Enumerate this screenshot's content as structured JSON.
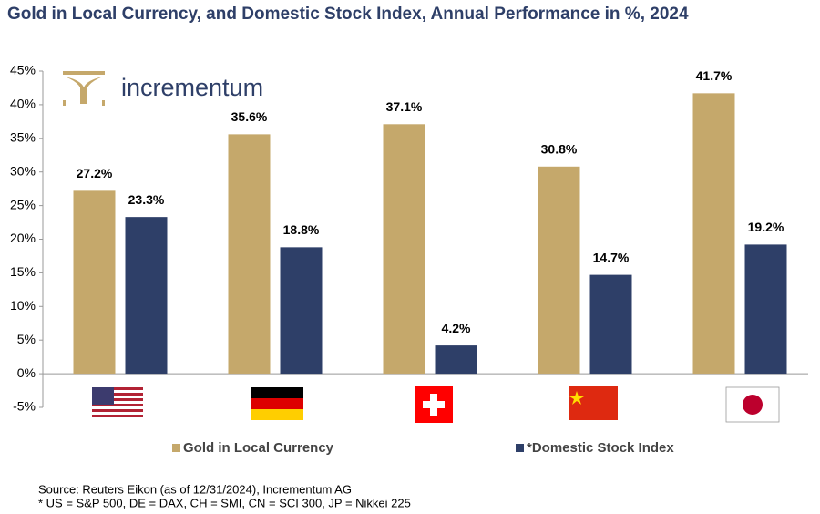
{
  "chart_data": {
    "type": "bar",
    "title": "Gold in Local Currency, and Domestic Stock Index, Annual Performance in %, 2024",
    "logo_text": "incrementum",
    "categories": [
      null,
      null,
      null,
      null,
      null
    ],
    "series": [
      {
        "name": "Gold in Local Currency",
        "color": "#c5a86b",
        "values": [
          27.2,
          35.6,
          37.1,
          30.8,
          41.7
        ],
        "value_labels": [
          "27.2%",
          "35.6%",
          "37.1%",
          "30.8%",
          "41.7%"
        ]
      },
      {
        "name": "*Domestic Stock Index",
        "color": "#2e3f68",
        "values": [
          23.3,
          18.8,
          4.2,
          14.7,
          19.2
        ],
        "value_labels": [
          "23.3%",
          "18.8%",
          "4.2%",
          "14.7%",
          "19.2%"
        ]
      }
    ],
    "ylim": [
      -5,
      45
    ],
    "yticks": [
      {
        "value": -5,
        "label": "-5%"
      },
      {
        "value": 0,
        "label": "0%"
      },
      {
        "value": 5,
        "label": "5%"
      },
      {
        "value": 10,
        "label": "10%"
      },
      {
        "value": 15,
        "label": "15%"
      },
      {
        "value": 20,
        "label": "20%"
      },
      {
        "value": 25,
        "label": "25%"
      },
      {
        "value": 30,
        "label": "30%"
      },
      {
        "value": 35,
        "label": "35%"
      },
      {
        "value": 40,
        "label": "40%"
      },
      {
        "value": 45,
        "label": "45%"
      }
    ],
    "notes": [
      "Source: Reuters Eikon (as of 12/31/2024), Incrementum AG",
      "* US = S&P 500, DE = DAX, CH = SMI, CN = SCI 300, JP = Nikkei 225"
    ]
  }
}
